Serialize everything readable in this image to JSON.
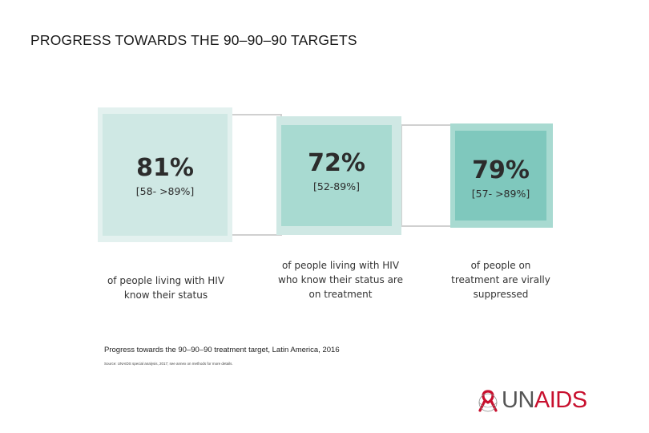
{
  "title": "PROGRESS TOWARDS THE 90–90–90 TARGETS",
  "chart_data": {
    "type": "table",
    "items": [
      {
        "value": "81%",
        "range": "[58- >89%]",
        "lines": [
          "of people living with HIV",
          "know their status"
        ]
      },
      {
        "value": "72%",
        "range": "[52-89%]",
        "lines": [
          "of people living with HIV",
          "who know their status are",
          "on treatment"
        ]
      },
      {
        "value": "79%",
        "range": "[57- >89%]",
        "lines": [
          "of people on",
          "treatment are virally",
          "suppressed"
        ]
      }
    ]
  },
  "caption": "Progress towards the 90–90–90 treatment target, Latin America, 2016",
  "source": "Source: UNAIDS special analysis, 2017; see annex on methods for more details.",
  "logo": {
    "un": "UN",
    "aids": "AIDS"
  },
  "colors": {
    "block1_outer": "#e3f1ef",
    "block1_inner": "#cfe8e4",
    "block2_outer": "#cfe8e4",
    "block2_inner": "#a8dad1",
    "block3_outer": "#a8dad1",
    "block3_inner": "#7fc8bd",
    "brand_red": "#c8102e"
  }
}
